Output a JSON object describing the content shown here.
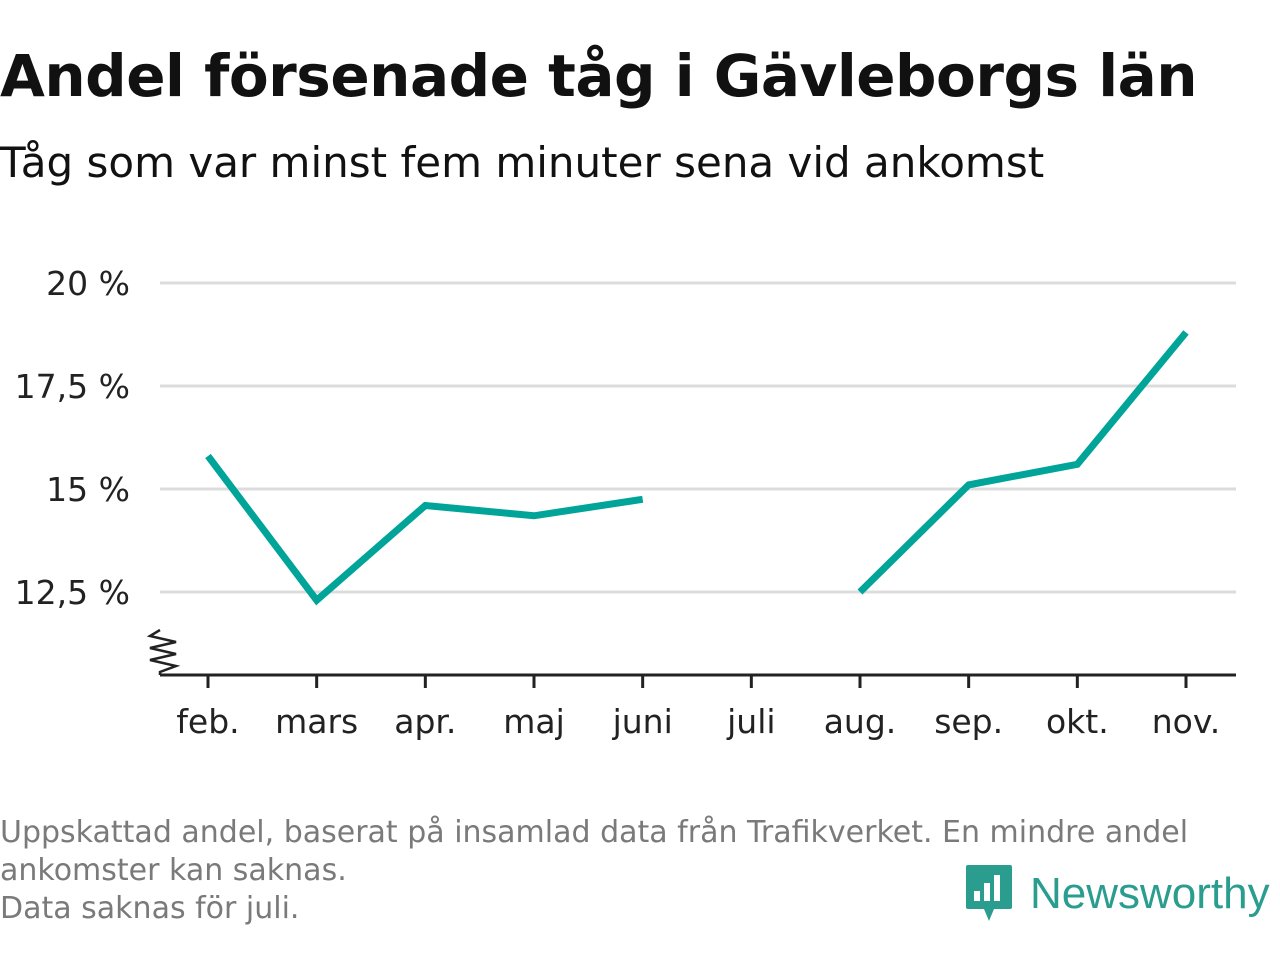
{
  "title": "Andel försenade tåg i Gävleborgs län",
  "subtitle": "Tåg som var minst fem minuter sena vid ankomst",
  "footnote": {
    "line1": "Uppskattad andel, baserat på insamlad data från Trafikverket. En mindre andel",
    "line2": "ankomster kan saknas.",
    "line3": "Data saknas för juli."
  },
  "brand": {
    "name": "Newsworthy",
    "icon": "newsworthy-chart-icon"
  },
  "colors": {
    "line": "#00a499",
    "grid": "#dcdcdc",
    "axis": "#222222"
  },
  "chart_data": {
    "type": "line",
    "categories": [
      "feb.",
      "mars",
      "apr.",
      "maj",
      "juni",
      "juli",
      "aug.",
      "sep.",
      "okt.",
      "nov."
    ],
    "series": [
      {
        "values": [
          15.8,
          12.3,
          14.6,
          14.35,
          14.75,
          null,
          12.5,
          15.1,
          15.6,
          18.8
        ]
      }
    ],
    "yticks": [
      12.5,
      15,
      17.5,
      20
    ],
    "ytick_labels": [
      "12,5 %",
      "15 %",
      "17,5 %",
      "20 %"
    ],
    "ylim": [
      10.5,
      20
    ],
    "y_axis_break": true,
    "grid": true,
    "legend": false
  }
}
